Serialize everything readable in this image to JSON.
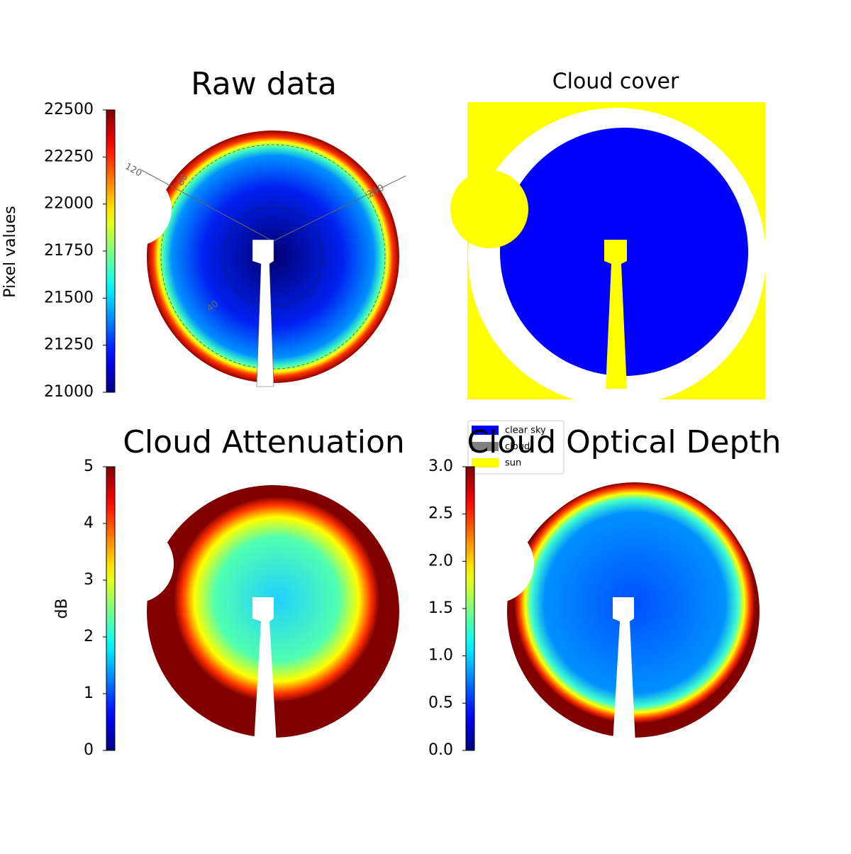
{
  "chart_data": [
    {
      "type": "image",
      "title": "Raw data",
      "annotations": [
        "120",
        "60",
        "240",
        "40"
      ],
      "colorbar": {
        "label": "Pixel values",
        "colormap": "jet",
        "clim": [
          21000,
          22500
        ],
        "ticks": [
          21000,
          21250,
          21500,
          21750,
          22000,
          22250,
          22500
        ]
      }
    },
    {
      "type": "image",
      "title": "Cloud cover",
      "series": [
        {
          "name": "clear sky",
          "color": "#0000ff"
        },
        {
          "name": "cloud",
          "color": "#808080"
        },
        {
          "name": "sun",
          "color": "#ffff00"
        }
      ]
    },
    {
      "type": "image",
      "title": "Cloud Attenuation",
      "colorbar": {
        "label": "dB",
        "colormap": "jet",
        "clim": [
          0,
          5
        ],
        "ticks": [
          0,
          1,
          2,
          3,
          4,
          5
        ]
      }
    },
    {
      "type": "image",
      "title": "Cloud Optical Depth",
      "colorbar": {
        "colormap": "jet",
        "clim": [
          0,
          3
        ],
        "ticks": [
          {
            "value": 0,
            "label": "0.0"
          },
          0.5,
          {
            "value": 1,
            "label": "1.0"
          },
          1.5,
          {
            "value": 2,
            "label": "2.0"
          },
          2.5,
          {
            "value": 3,
            "label": "3.0"
          }
        ]
      }
    }
  ]
}
